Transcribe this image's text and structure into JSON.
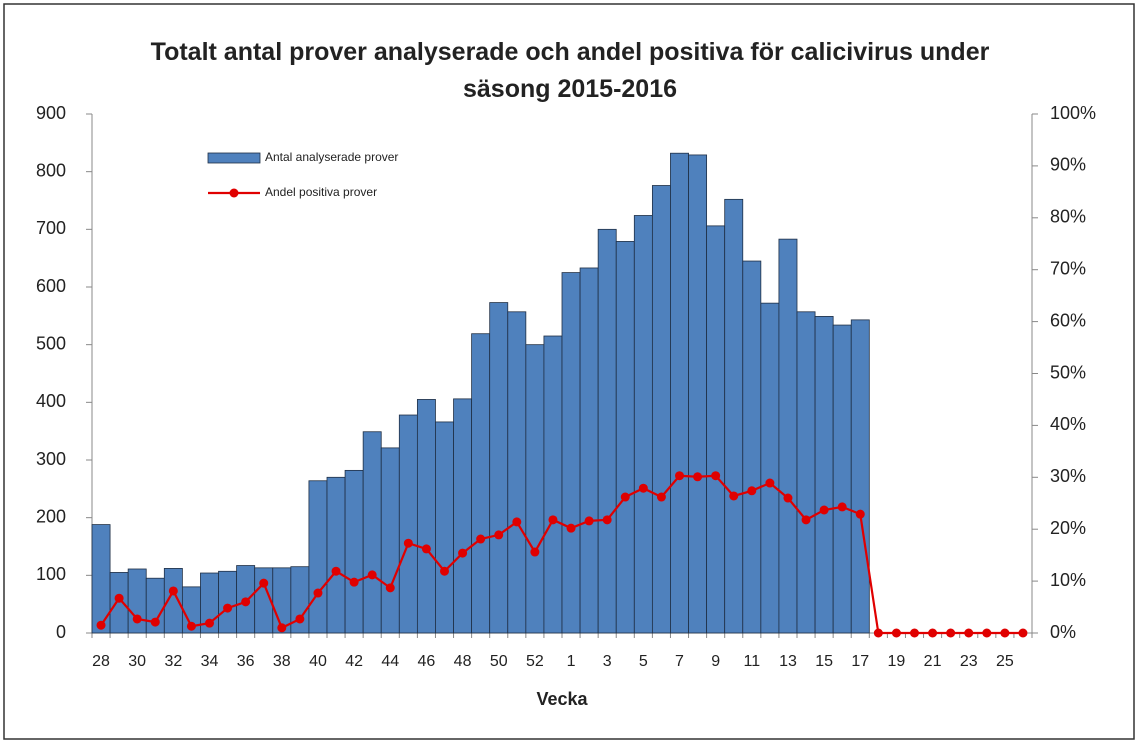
{
  "chart_data": {
    "type": "bar",
    "title": "Totalt antal prover analyserade och andel positiva för calicivirus under säsong 2015-2016",
    "x_label": "Vecka",
    "categories": [
      "28",
      null,
      "30",
      null,
      "32",
      null,
      "34",
      null,
      "36",
      null,
      "38",
      null,
      "40",
      null,
      "42",
      null,
      "44",
      null,
      "46",
      null,
      "48",
      null,
      "50",
      null,
      "52",
      null,
      "1",
      null,
      "3",
      null,
      "5",
      null,
      "7",
      null,
      "9",
      null,
      "11",
      null,
      "13",
      null,
      "15",
      null,
      "17",
      null,
      "19",
      null,
      "21",
      null,
      "23",
      null,
      "25",
      null
    ],
    "series": [
      {
        "name": "Antal analyserade prover",
        "type": "bar",
        "color": "#4f81bd",
        "values": [
          188,
          105,
          111,
          95,
          112,
          80,
          104,
          107,
          117,
          113,
          113,
          115,
          264,
          270,
          282,
          349,
          321,
          378,
          405,
          366,
          406,
          519,
          573,
          557,
          500,
          515,
          625,
          633,
          700,
          679,
          724,
          776,
          832,
          829,
          706,
          752,
          645,
          572,
          683,
          557,
          549,
          534,
          543,
          null,
          null,
          null,
          null,
          null,
          null,
          null,
          null,
          null
        ]
      },
      {
        "name": "Andel positiva prover",
        "type": "line",
        "axis": "y2",
        "color": "#e00000",
        "values": [
          1.5,
          6.7,
          2.7,
          2.1,
          8.1,
          1.3,
          1.9,
          4.8,
          6.0,
          9.6,
          1.0,
          2.7,
          7.7,
          11.9,
          9.8,
          11.2,
          8.7,
          17.3,
          16.2,
          11.9,
          15.4,
          18.1,
          18.9,
          21.4,
          15.6,
          21.8,
          20.2,
          21.6,
          21.8,
          26.2,
          27.9,
          26.2,
          30.3,
          30.1,
          30.3,
          26.4,
          27.4,
          28.9,
          26.0,
          21.8,
          23.7,
          24.3,
          22.9,
          0,
          0,
          0,
          0,
          0,
          0,
          0,
          0,
          0
        ]
      }
    ],
    "ylim": [
      0,
      900
    ],
    "yticks": [
      0,
      100,
      200,
      300,
      400,
      500,
      600,
      700,
      800,
      900
    ],
    "y2lim": [
      0,
      100
    ],
    "y2ticks": [
      {
        "value": 0,
        "label": "0%"
      },
      {
        "value": 10,
        "label": "10%"
      },
      {
        "value": 20,
        "label": "20%"
      },
      {
        "value": 30,
        "label": "30%"
      },
      {
        "value": 40,
        "label": "40%"
      },
      {
        "value": 50,
        "label": "50%"
      },
      {
        "value": 60,
        "label": "60%"
      },
      {
        "value": 70,
        "label": "70%"
      },
      {
        "value": 80,
        "label": "80%"
      },
      {
        "value": 90,
        "label": "90%"
      },
      {
        "value": 100,
        "label": "100%"
      }
    ],
    "grid": false
  }
}
